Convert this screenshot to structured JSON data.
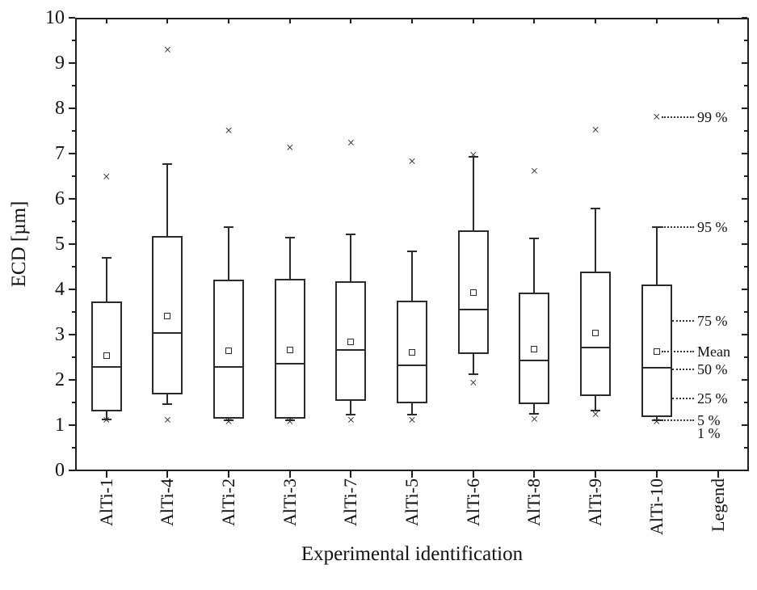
{
  "chart_data": {
    "type": "boxplot",
    "title": "",
    "xlabel": "Experimental identification",
    "ylabel": "ECD [µm]",
    "ylim": [
      0,
      10
    ],
    "y_major_ticks": [
      0,
      1,
      2,
      3,
      4,
      5,
      6,
      7,
      8,
      9,
      10
    ],
    "y_minor_step": 0.5,
    "grid": false,
    "legend_position": "right-column",
    "categories": [
      "AlTi-1",
      "AlTi-4",
      "AlTi-2",
      "AlTi-3",
      "AlTi-7",
      "AlTi-5",
      "AlTi-6",
      "AlTi-8",
      "AlTi-9",
      "AlTi-10",
      "Legend"
    ],
    "series": [
      {
        "name": "AlTi-1",
        "p1": 1.1,
        "p5": 1.12,
        "q1": 1.31,
        "median": 2.28,
        "q3": 3.73,
        "p95": 4.7,
        "p99": 6.48,
        "mean": 2.54
      },
      {
        "name": "AlTi-4",
        "p1": 1.1,
        "p5": 1.46,
        "q1": 1.67,
        "median": 3.03,
        "q3": 5.17,
        "p95": 6.76,
        "p99": 9.28,
        "mean": 3.41
      },
      {
        "name": "AlTi-2",
        "p1": 1.08,
        "p5": 1.11,
        "q1": 1.14,
        "median": 2.28,
        "q3": 4.22,
        "p95": 5.37,
        "p99": 7.5,
        "mean": 2.65
      },
      {
        "name": "AlTi-3",
        "p1": 1.08,
        "p5": 1.11,
        "q1": 1.14,
        "median": 2.36,
        "q3": 4.24,
        "p95": 5.15,
        "p99": 7.13,
        "mean": 2.66
      },
      {
        "name": "AlTi-7",
        "p1": 1.11,
        "p5": 1.24,
        "q1": 1.53,
        "median": 2.66,
        "q3": 4.17,
        "p95": 5.21,
        "p99": 7.23,
        "mean": 2.84
      },
      {
        "name": "AlTi-5",
        "p1": 1.1,
        "p5": 1.23,
        "q1": 1.49,
        "median": 2.33,
        "q3": 3.75,
        "p95": 4.84,
        "p99": 6.82,
        "mean": 2.6
      },
      {
        "name": "AlTi-6",
        "p1": 1.92,
        "p5": 2.12,
        "q1": 2.58,
        "median": 3.55,
        "q3": 5.3,
        "p95": 6.93,
        "p99": 6.97,
        "mean": 3.93
      },
      {
        "name": "AlTi-8",
        "p1": 1.12,
        "p5": 1.25,
        "q1": 1.46,
        "median": 2.42,
        "q3": 3.92,
        "p95": 5.12,
        "p99": 6.6,
        "mean": 2.68
      },
      {
        "name": "AlTi-9",
        "p1": 1.24,
        "p5": 1.32,
        "q1": 1.65,
        "median": 2.71,
        "q3": 4.39,
        "p95": 5.79,
        "p99": 7.51,
        "mean": 3.04
      },
      {
        "name": "AlTi-10",
        "p1": 1.08,
        "p5": 1.1,
        "q1": 1.17,
        "median": 2.26,
        "q3": 4.1,
        "p95": 5.37,
        "p99": 7.8,
        "mean": 2.62
      }
    ],
    "legend_column": {
      "label": "Legend",
      "attached_to": "AlTi-10",
      "annotations": [
        {
          "label": "99 %",
          "y": 7.8,
          "attach": "marker",
          "line": true
        },
        {
          "label": "95 %",
          "y": 5.37,
          "attach": "marker",
          "line": true
        },
        {
          "label": "75 %",
          "y": 3.3,
          "attach": "box",
          "line": true
        },
        {
          "label": "Mean",
          "y": 2.62,
          "attach": "marker",
          "line": true
        },
        {
          "label": "50 %",
          "y": 2.24,
          "attach": "box",
          "line": true
        },
        {
          "label": "25 %",
          "y": 1.59,
          "attach": "box",
          "line": true
        },
        {
          "label": "5 %",
          "y": 1.1,
          "attach": "marker",
          "line": true
        },
        {
          "label": "1 %",
          "y": 0.82,
          "attach": "none",
          "line": false
        }
      ]
    }
  }
}
